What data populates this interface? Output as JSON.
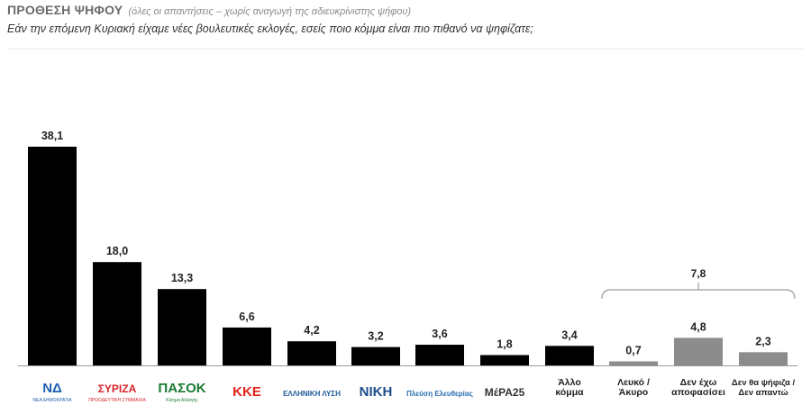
{
  "header": {
    "title": "ΠΡΟΘΕΣΗ ΨΗΦΟΥ",
    "title_note": "(όλες οι απαντήσεις – χωρίς αναγωγή της αδιευκρίνιστης ψήφου)",
    "question": "Εάν την επόμενη Κυριακή είχαμε νέες βουλευτικές εκλογές, εσείς ποιο κόμμα είναι πιο πιθανό να ψηφίζατε;"
  },
  "colors": {
    "party_bar": "#000000",
    "other_bar": "#8c8c8c",
    "bracket": "#9a9a9a"
  },
  "chart_data": {
    "type": "bar",
    "title": "",
    "xlabel": "",
    "ylabel": "",
    "ylim": [
      0,
      40
    ],
    "grid": false,
    "categories": [
      "ΝΔ",
      "ΣΥΡΙΖΑ",
      "ΠΑΣΟΚ",
      "ΚΚΕ",
      "ΕΛΛΗΝΙΚΗ ΛΥΣΗ",
      "ΝΙΚΗ",
      "Πλεύση Ελευθερίας",
      "ΜέΡΑ25",
      "Άλλο κόμμα",
      "Λευκό / Άκυρο",
      "Δεν έχω αποφασίσει",
      "Δεν θα ψήφιζα / Δεν απαντώ"
    ],
    "values": [
      38.1,
      18.0,
      13.3,
      6.6,
      4.2,
      3.2,
      3.6,
      1.8,
      3.4,
      0.7,
      4.8,
      2.3
    ],
    "value_labels": [
      "38,1",
      "18,0",
      "13,3",
      "6,6",
      "4,2",
      "3,2",
      "3,6",
      "1,8",
      "3,4",
      "0,7",
      "4,8",
      "2,3"
    ],
    "bar_colors": [
      "#000000",
      "#000000",
      "#000000",
      "#000000",
      "#000000",
      "#000000",
      "#000000",
      "#000000",
      "#000000",
      "#8c8c8c",
      "#8c8c8c",
      "#8c8c8c"
    ],
    "x_labels": [
      {
        "kind": "logo",
        "text": "ΝΔ",
        "sub": "ΝΕΑ ΔΗΜΟΚΡΑΤΙΑ",
        "color": "#1f5fb0"
      },
      {
        "kind": "logo",
        "text": "ΣΥΡΙΖΑ",
        "sub": "ΠΡΟΟΔΕΥΤΙΚΗ ΣΥΜΜΑΧΙΑ",
        "color": "#d8232a"
      },
      {
        "kind": "logo",
        "text": "ΠΑΣΟΚ",
        "sub": "Κίνημα Αλλαγής",
        "color": "#1a7a34"
      },
      {
        "kind": "logo",
        "text": "ΚΚΕ",
        "sub": "",
        "color": "#e2231a"
      },
      {
        "kind": "logo",
        "text": "ΕΛΛΗΝΙΚΗ ΛΥΣΗ",
        "sub": "",
        "color": "#1c5a9a"
      },
      {
        "kind": "logo",
        "text": "ΝΙΚΗ",
        "sub": "",
        "color": "#1d4d8c"
      },
      {
        "kind": "logo",
        "text": "Πλεύση Ελευθερίας",
        "sub": "",
        "color": "#2a6db0"
      },
      {
        "kind": "logo",
        "text": "ΜέΡΑ25",
        "sub": "",
        "color": "#333333"
      },
      {
        "kind": "text",
        "lines": [
          "Άλλο",
          "κόμμα"
        ]
      },
      {
        "kind": "text",
        "lines": [
          "Λευκό /",
          "Άκυρο"
        ]
      },
      {
        "kind": "text",
        "lines": [
          "Δεν έχω",
          "αποφασίσει"
        ]
      },
      {
        "kind": "text",
        "lines": [
          "Δεν θα ψήφιζα /",
          "Δεν απαντώ"
        ]
      }
    ],
    "annotations": [
      {
        "type": "bracket",
        "from_category": 9,
        "to_category": 11,
        "label": "7,8",
        "sum": 7.8
      }
    ]
  }
}
